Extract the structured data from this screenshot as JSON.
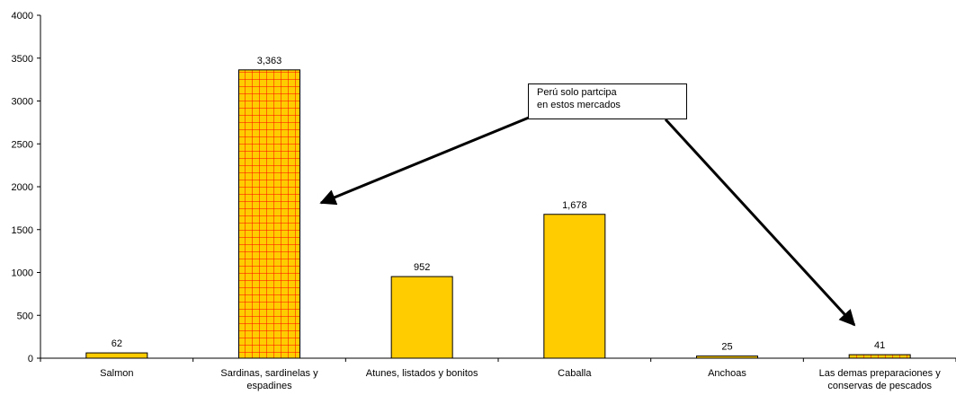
{
  "title_fragment": "",
  "callout": {
    "line1": "Perú solo partcipa",
    "line2": "en estos mercados"
  },
  "colors": {
    "bar_fill": "#FFCC00",
    "bar_stroke": "#000000",
    "grid_pattern_line": "#FF0000"
  },
  "chart_data": {
    "type": "bar",
    "categories": [
      [
        "Salmon"
      ],
      [
        "Sardinas, sardinelas y",
        "espadines"
      ],
      [
        "Atunes, listados y bonitos"
      ],
      [
        "Caballa"
      ],
      [
        "Anchoas"
      ],
      [
        "Las demas preparaciones y",
        "conservas de pescados"
      ]
    ],
    "values": [
      62,
      3363,
      952,
      1678,
      25,
      41
    ],
    "data_labels": [
      "62",
      "3,363",
      "952",
      "1,678",
      "25",
      "41"
    ],
    "highlighted": [
      false,
      true,
      false,
      false,
      false,
      true
    ],
    "ylim": [
      0,
      4000
    ],
    "yticks": [
      0,
      500,
      1000,
      1500,
      2000,
      2500,
      3000,
      3500,
      4000
    ],
    "grid": false,
    "legend": "none",
    "annotation": "Perú solo partcipa en estos mercados"
  }
}
